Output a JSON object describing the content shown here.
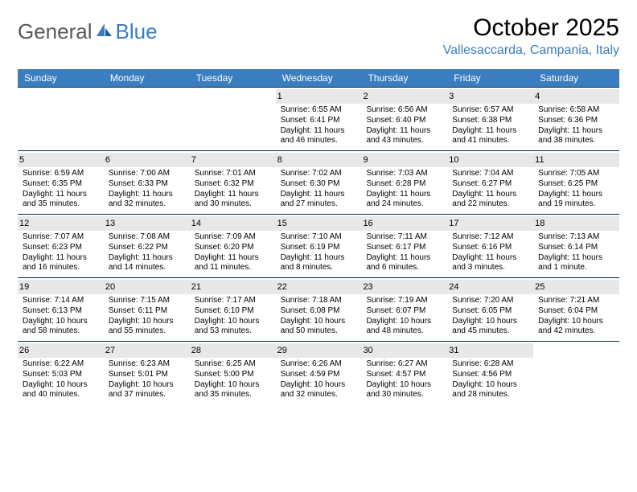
{
  "logo": {
    "word1": "General",
    "word2": "Blue"
  },
  "title": "October 2025",
  "location": "Vallesaccarda, Campania, Italy",
  "colors": {
    "header_bg": "#3a7ebf",
    "header_text": "#ffffff",
    "row_border": "#002b49",
    "daynum_bg": "#e8e8e8",
    "logo_gray": "#58595b",
    "logo_blue": "#3a7ebf"
  },
  "day_header_font_size": 12,
  "cell_font_size": 10,
  "title_font_size": 30,
  "location_font_size": 16,
  "day_names": [
    "Sunday",
    "Monday",
    "Tuesday",
    "Wednesday",
    "Thursday",
    "Friday",
    "Saturday"
  ],
  "weeks": [
    [
      {
        "n": "",
        "sr": "",
        "ss": "",
        "dl": ""
      },
      {
        "n": "",
        "sr": "",
        "ss": "",
        "dl": ""
      },
      {
        "n": "",
        "sr": "",
        "ss": "",
        "dl": ""
      },
      {
        "n": "1",
        "sr": "Sunrise: 6:55 AM",
        "ss": "Sunset: 6:41 PM",
        "dl": "Daylight: 11 hours and 46 minutes."
      },
      {
        "n": "2",
        "sr": "Sunrise: 6:56 AM",
        "ss": "Sunset: 6:40 PM",
        "dl": "Daylight: 11 hours and 43 minutes."
      },
      {
        "n": "3",
        "sr": "Sunrise: 6:57 AM",
        "ss": "Sunset: 6:38 PM",
        "dl": "Daylight: 11 hours and 41 minutes."
      },
      {
        "n": "4",
        "sr": "Sunrise: 6:58 AM",
        "ss": "Sunset: 6:36 PM",
        "dl": "Daylight: 11 hours and 38 minutes."
      }
    ],
    [
      {
        "n": "5",
        "sr": "Sunrise: 6:59 AM",
        "ss": "Sunset: 6:35 PM",
        "dl": "Daylight: 11 hours and 35 minutes."
      },
      {
        "n": "6",
        "sr": "Sunrise: 7:00 AM",
        "ss": "Sunset: 6:33 PM",
        "dl": "Daylight: 11 hours and 32 minutes."
      },
      {
        "n": "7",
        "sr": "Sunrise: 7:01 AM",
        "ss": "Sunset: 6:32 PM",
        "dl": "Daylight: 11 hours and 30 minutes."
      },
      {
        "n": "8",
        "sr": "Sunrise: 7:02 AM",
        "ss": "Sunset: 6:30 PM",
        "dl": "Daylight: 11 hours and 27 minutes."
      },
      {
        "n": "9",
        "sr": "Sunrise: 7:03 AM",
        "ss": "Sunset: 6:28 PM",
        "dl": "Daylight: 11 hours and 24 minutes."
      },
      {
        "n": "10",
        "sr": "Sunrise: 7:04 AM",
        "ss": "Sunset: 6:27 PM",
        "dl": "Daylight: 11 hours and 22 minutes."
      },
      {
        "n": "11",
        "sr": "Sunrise: 7:05 AM",
        "ss": "Sunset: 6:25 PM",
        "dl": "Daylight: 11 hours and 19 minutes."
      }
    ],
    [
      {
        "n": "12",
        "sr": "Sunrise: 7:07 AM",
        "ss": "Sunset: 6:23 PM",
        "dl": "Daylight: 11 hours and 16 minutes."
      },
      {
        "n": "13",
        "sr": "Sunrise: 7:08 AM",
        "ss": "Sunset: 6:22 PM",
        "dl": "Daylight: 11 hours and 14 minutes."
      },
      {
        "n": "14",
        "sr": "Sunrise: 7:09 AM",
        "ss": "Sunset: 6:20 PM",
        "dl": "Daylight: 11 hours and 11 minutes."
      },
      {
        "n": "15",
        "sr": "Sunrise: 7:10 AM",
        "ss": "Sunset: 6:19 PM",
        "dl": "Daylight: 11 hours and 8 minutes."
      },
      {
        "n": "16",
        "sr": "Sunrise: 7:11 AM",
        "ss": "Sunset: 6:17 PM",
        "dl": "Daylight: 11 hours and 6 minutes."
      },
      {
        "n": "17",
        "sr": "Sunrise: 7:12 AM",
        "ss": "Sunset: 6:16 PM",
        "dl": "Daylight: 11 hours and 3 minutes."
      },
      {
        "n": "18",
        "sr": "Sunrise: 7:13 AM",
        "ss": "Sunset: 6:14 PM",
        "dl": "Daylight: 11 hours and 1 minute."
      }
    ],
    [
      {
        "n": "19",
        "sr": "Sunrise: 7:14 AM",
        "ss": "Sunset: 6:13 PM",
        "dl": "Daylight: 10 hours and 58 minutes."
      },
      {
        "n": "20",
        "sr": "Sunrise: 7:15 AM",
        "ss": "Sunset: 6:11 PM",
        "dl": "Daylight: 10 hours and 55 minutes."
      },
      {
        "n": "21",
        "sr": "Sunrise: 7:17 AM",
        "ss": "Sunset: 6:10 PM",
        "dl": "Daylight: 10 hours and 53 minutes."
      },
      {
        "n": "22",
        "sr": "Sunrise: 7:18 AM",
        "ss": "Sunset: 6:08 PM",
        "dl": "Daylight: 10 hours and 50 minutes."
      },
      {
        "n": "23",
        "sr": "Sunrise: 7:19 AM",
        "ss": "Sunset: 6:07 PM",
        "dl": "Daylight: 10 hours and 48 minutes."
      },
      {
        "n": "24",
        "sr": "Sunrise: 7:20 AM",
        "ss": "Sunset: 6:05 PM",
        "dl": "Daylight: 10 hours and 45 minutes."
      },
      {
        "n": "25",
        "sr": "Sunrise: 7:21 AM",
        "ss": "Sunset: 6:04 PM",
        "dl": "Daylight: 10 hours and 42 minutes."
      }
    ],
    [
      {
        "n": "26",
        "sr": "Sunrise: 6:22 AM",
        "ss": "Sunset: 5:03 PM",
        "dl": "Daylight: 10 hours and 40 minutes."
      },
      {
        "n": "27",
        "sr": "Sunrise: 6:23 AM",
        "ss": "Sunset: 5:01 PM",
        "dl": "Daylight: 10 hours and 37 minutes."
      },
      {
        "n": "28",
        "sr": "Sunrise: 6:25 AM",
        "ss": "Sunset: 5:00 PM",
        "dl": "Daylight: 10 hours and 35 minutes."
      },
      {
        "n": "29",
        "sr": "Sunrise: 6:26 AM",
        "ss": "Sunset: 4:59 PM",
        "dl": "Daylight: 10 hours and 32 minutes."
      },
      {
        "n": "30",
        "sr": "Sunrise: 6:27 AM",
        "ss": "Sunset: 4:57 PM",
        "dl": "Daylight: 10 hours and 30 minutes."
      },
      {
        "n": "31",
        "sr": "Sunrise: 6:28 AM",
        "ss": "Sunset: 4:56 PM",
        "dl": "Daylight: 10 hours and 28 minutes."
      },
      {
        "n": "",
        "sr": "",
        "ss": "",
        "dl": ""
      }
    ]
  ]
}
